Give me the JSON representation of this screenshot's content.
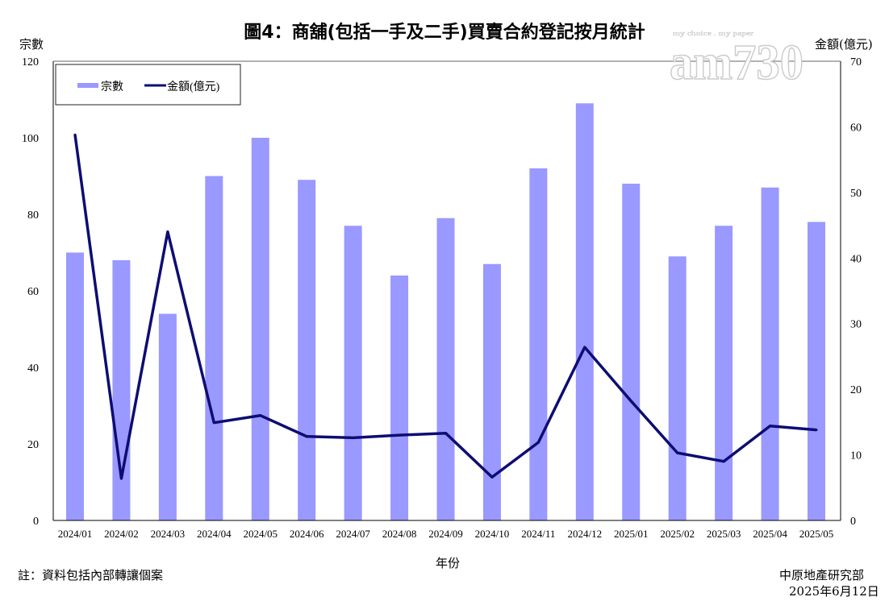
{
  "chart_data": {
    "type": "bar+line",
    "title": "圖4：商舖(包括一手及二手)買賣合約登記按月統計",
    "xlabel": "年份",
    "ylabel_left": "宗數",
    "ylabel_right": "金額(億元)",
    "ylim_left": [
      0,
      120
    ],
    "ylim_right": [
      0,
      70
    ],
    "yticks_left": [
      0,
      20,
      40,
      60,
      80,
      100,
      120
    ],
    "yticks_right": [
      0,
      10,
      20,
      30,
      40,
      50,
      60,
      70
    ],
    "grid": false,
    "legend_placement": "top-left",
    "categories": [
      "2024/01",
      "2024/02",
      "2024/03",
      "2024/04",
      "2024/05",
      "2024/06",
      "2024/07",
      "2024/08",
      "2024/09",
      "2024/10",
      "2024/11",
      "2024/12",
      "2025/01",
      "2025/02",
      "2025/03",
      "2025/04",
      "2025/05"
    ],
    "series": [
      {
        "name": "宗數",
        "type": "bar",
        "axis": "left",
        "color": "#9999ff",
        "values": [
          70,
          68,
          54,
          90,
          100,
          89,
          77,
          64,
          79,
          67,
          92,
          109,
          88,
          69,
          77,
          87,
          78
        ]
      },
      {
        "name": "金額(億元)",
        "type": "line",
        "axis": "right",
        "color": "#0d0d73",
        "values": [
          58.8,
          6.4,
          44.0,
          14.9,
          16.0,
          12.8,
          12.6,
          13.0,
          13.3,
          6.6,
          11.9,
          26.4,
          18.2,
          10.3,
          9.0,
          14.4,
          13.8
        ]
      }
    ]
  },
  "footer": {
    "note": "註：資料包括內部轉讓個案",
    "source": "中原地產研究部",
    "date": "2025年6月12日"
  },
  "watermark": {
    "logo": "am730",
    "tagline": "my choice . my paper"
  }
}
